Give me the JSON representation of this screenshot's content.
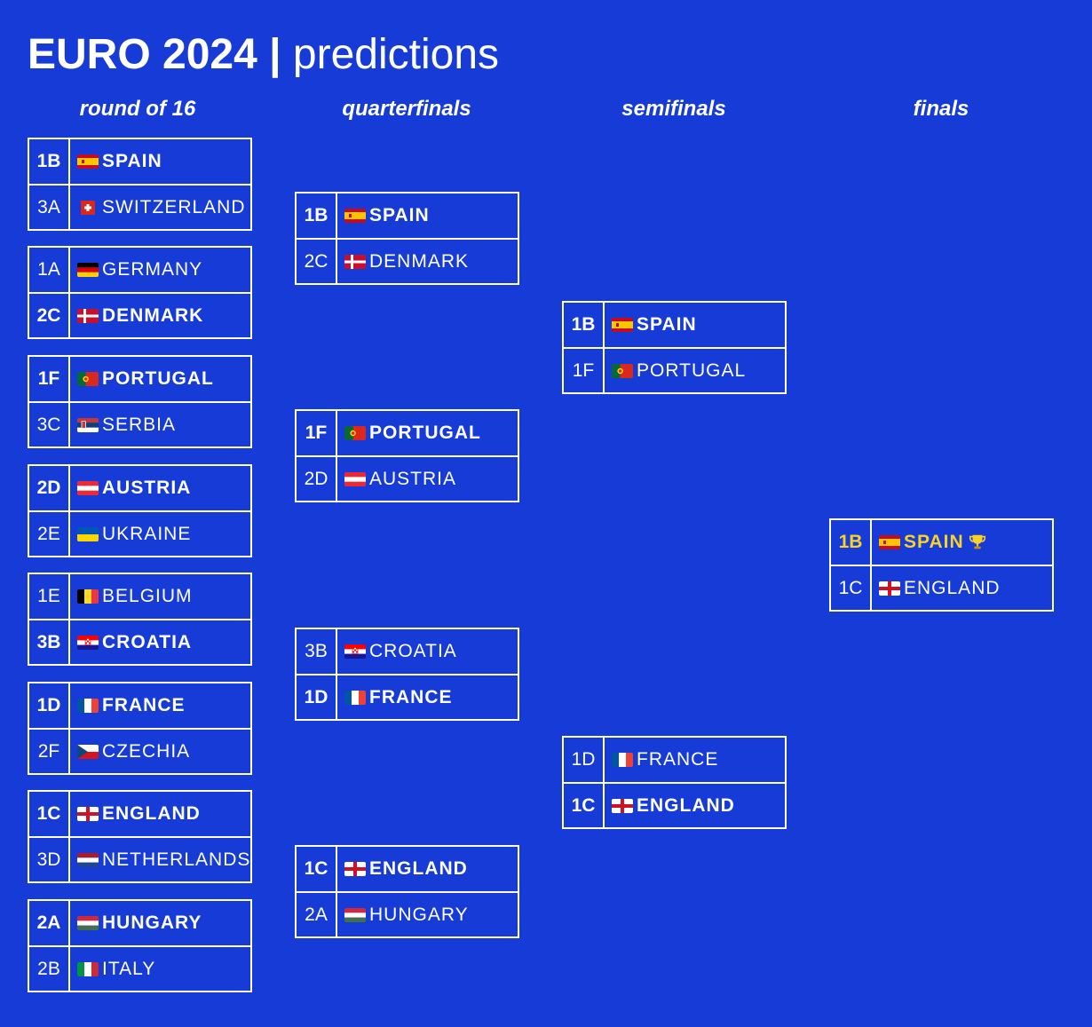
{
  "title": {
    "bold": "EURO 2024",
    "separator": "|",
    "light": "predictions"
  },
  "round_labels": [
    "round of 16",
    "quarterfinals",
    "semifinals",
    "finals"
  ],
  "champion": {
    "seed": "1B",
    "team": "SPAIN",
    "icon": "trophy-icon",
    "color": "#f6d22a"
  },
  "colors": {
    "background": "#163bd6",
    "lines": "#ffffff",
    "champion": "#f6d22a"
  },
  "rounds": [
    {
      "name": "round of 16",
      "matches": [
        {
          "teams": [
            {
              "seed": "1B",
              "team": "SPAIN",
              "flag": "spain",
              "winner": true
            },
            {
              "seed": "3A",
              "team": "SWITZERLAND",
              "flag": "switzerland",
              "winner": false
            }
          ]
        },
        {
          "teams": [
            {
              "seed": "1A",
              "team": "GERMANY",
              "flag": "germany",
              "winner": false
            },
            {
              "seed": "2C",
              "team": "DENMARK",
              "flag": "denmark",
              "winner": true
            }
          ]
        },
        {
          "teams": [
            {
              "seed": "1F",
              "team": "PORTUGAL",
              "flag": "portugal",
              "winner": true
            },
            {
              "seed": "3C",
              "team": "SERBIA",
              "flag": "serbia",
              "winner": false
            }
          ]
        },
        {
          "teams": [
            {
              "seed": "2D",
              "team": "AUSTRIA",
              "flag": "austria",
              "winner": true
            },
            {
              "seed": "2E",
              "team": "UKRAINE",
              "flag": "ukraine",
              "winner": false
            }
          ]
        },
        {
          "teams": [
            {
              "seed": "1E",
              "team": "BELGIUM",
              "flag": "belgium",
              "winner": false
            },
            {
              "seed": "3B",
              "team": "CROATIA",
              "flag": "croatia",
              "winner": true
            }
          ]
        },
        {
          "teams": [
            {
              "seed": "1D",
              "team": "FRANCE",
              "flag": "france",
              "winner": true
            },
            {
              "seed": "2F",
              "team": "CZECHIA",
              "flag": "czechia",
              "winner": false
            }
          ]
        },
        {
          "teams": [
            {
              "seed": "1C",
              "team": "ENGLAND",
              "flag": "england",
              "winner": true
            },
            {
              "seed": "3D",
              "team": "NETHERLANDS",
              "flag": "netherlands",
              "winner": false
            }
          ]
        },
        {
          "teams": [
            {
              "seed": "2A",
              "team": "HUNGARY",
              "flag": "hungary",
              "winner": true
            },
            {
              "seed": "2B",
              "team": "ITALY",
              "flag": "italy",
              "winner": false
            }
          ]
        }
      ]
    },
    {
      "name": "quarterfinals",
      "matches": [
        {
          "teams": [
            {
              "seed": "1B",
              "team": "SPAIN",
              "flag": "spain",
              "winner": true
            },
            {
              "seed": "2C",
              "team": "DENMARK",
              "flag": "denmark",
              "winner": false
            }
          ]
        },
        {
          "teams": [
            {
              "seed": "1F",
              "team": "PORTUGAL",
              "flag": "portugal",
              "winner": true
            },
            {
              "seed": "2D",
              "team": "AUSTRIA",
              "flag": "austria",
              "winner": false
            }
          ]
        },
        {
          "teams": [
            {
              "seed": "3B",
              "team": "CROATIA",
              "flag": "croatia",
              "winner": false
            },
            {
              "seed": "1D",
              "team": "FRANCE",
              "flag": "france",
              "winner": true
            }
          ]
        },
        {
          "teams": [
            {
              "seed": "1C",
              "team": "ENGLAND",
              "flag": "england",
              "winner": true
            },
            {
              "seed": "2A",
              "team": "HUNGARY",
              "flag": "hungary",
              "winner": false
            }
          ]
        }
      ]
    },
    {
      "name": "semifinals",
      "matches": [
        {
          "teams": [
            {
              "seed": "1B",
              "team": "SPAIN",
              "flag": "spain",
              "winner": true
            },
            {
              "seed": "1F",
              "team": "PORTUGAL",
              "flag": "portugal",
              "winner": false
            }
          ]
        },
        {
          "teams": [
            {
              "seed": "1D",
              "team": "FRANCE",
              "flag": "france",
              "winner": false
            },
            {
              "seed": "1C",
              "team": "ENGLAND",
              "flag": "england",
              "winner": true
            }
          ]
        }
      ]
    },
    {
      "name": "finals",
      "matches": [
        {
          "teams": [
            {
              "seed": "1B",
              "team": "SPAIN",
              "flag": "spain",
              "winner": true,
              "champion": true
            },
            {
              "seed": "1C",
              "team": "ENGLAND",
              "flag": "england",
              "winner": false
            }
          ]
        }
      ]
    }
  ]
}
